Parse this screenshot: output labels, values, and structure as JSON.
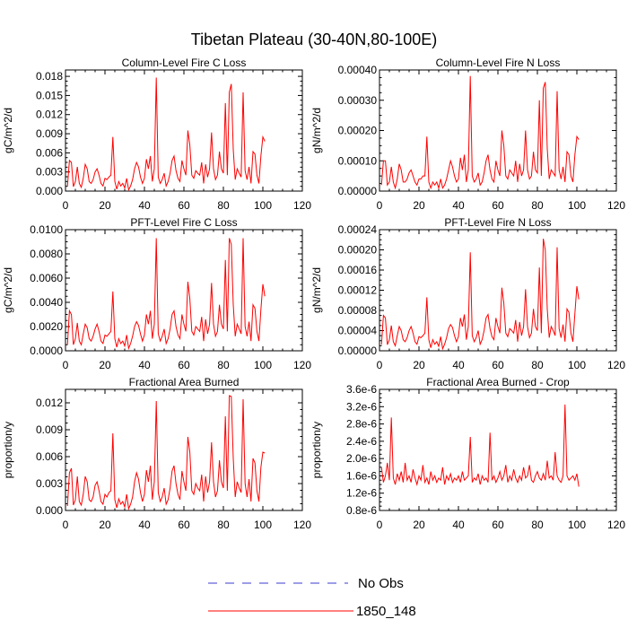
{
  "figure": {
    "title": "Tibetan Plateau (30-40N,80-100E)"
  },
  "legend": {
    "items": [
      {
        "label": "No Obs",
        "color": "#3b3bd0",
        "dash": "dashed"
      },
      {
        "label": "1850_148",
        "color": "#ff0000",
        "dash": "solid"
      }
    ]
  },
  "chart_data": [
    {
      "type": "line",
      "title": "Column-Level Fire C Loss",
      "ylabel": "gC/m^2/d",
      "xlim": [
        0,
        120
      ],
      "ylim": [
        0,
        0.019
      ],
      "xticks": [
        0,
        20,
        40,
        60,
        80,
        100,
        120
      ],
      "yticks": [
        0,
        0.003,
        0.006,
        0.009,
        0.012,
        0.015,
        0.018
      ],
      "yticklabels": [
        "0.000",
        "0.003",
        "0.006",
        "0.009",
        "0.012",
        "0.015",
        "0.018"
      ],
      "series": [
        {
          "name": "1850_148",
          "color": "#ff0000",
          "x_start": 1,
          "values": [
            0.0008,
            0.0048,
            0.0045,
            0.0007,
            0.0015,
            0.0038,
            0.0012,
            0.0006,
            0.002,
            0.0042,
            0.0035,
            0.0015,
            0.0012,
            0.0018,
            0.003,
            0.0035,
            0.0025,
            0.0012,
            0.0008,
            0.002,
            0.0018,
            0.0022,
            0.0025,
            0.0085,
            0.0015,
            0.0003,
            0.0015,
            0.0008,
            0.0012,
            0.0005,
            0.002,
            0.0002,
            0.0008,
            0.0018,
            0.0035,
            0.0045,
            0.0038,
            0.0022,
            0.0012,
            0.002,
            0.005,
            0.0035,
            0.0055,
            0.0015,
            0.0035,
            0.0178,
            0.0022,
            0.0012,
            0.0018,
            0.0028,
            0.0008,
            0.0015,
            0.0028,
            0.0048,
            0.0055,
            0.0032,
            0.002,
            0.0015,
            0.0048,
            0.0035,
            0.0025,
            0.0095,
            0.0072,
            0.0025,
            0.002,
            0.0032,
            0.0028,
            0.0025,
            0.0045,
            0.0012,
            0.0042,
            0.0022,
            0.0035,
            0.0092,
            0.0035,
            0.0018,
            0.0025,
            0.0062,
            0.0035,
            0.0028,
            0.0138,
            0.0025,
            0.0155,
            0.0168,
            0.0065,
            0.0018,
            0.0035,
            0.0028,
            0.0022,
            0.0155,
            0.0032,
            0.0018,
            0.0038,
            0.0012,
            0.0062,
            0.0058,
            0.0025,
            0.0012,
            0.0055,
            0.0085,
            0.0078
          ]
        }
      ]
    },
    {
      "type": "line",
      "title": "Column-Level Fire N Loss",
      "ylabel": "gN/m^2/d",
      "xlim": [
        0,
        120
      ],
      "ylim": [
        0,
        0.0004
      ],
      "xticks": [
        0,
        20,
        40,
        60,
        80,
        100,
        120
      ],
      "yticks": [
        0,
        0.0001,
        0.0002,
        0.0003,
        0.0004
      ],
      "yticklabels": [
        "0.00000",
        "0.00010",
        "0.00020",
        "0.00030",
        "0.00040"
      ],
      "series": [
        {
          "name": "1850_148",
          "color": "#ff0000",
          "x_start": 1,
          "values": [
            2e-05,
            0.0001,
            0.0001,
            2e-05,
            3e-05,
            8e-05,
            3e-05,
            1e-05,
            4e-05,
            9e-05,
            7e-05,
            3e-05,
            3e-05,
            4e-05,
            6e-05,
            7e-05,
            5e-05,
            3e-05,
            2e-05,
            4e-05,
            4e-05,
            5e-05,
            5e-05,
            0.00018,
            3e-05,
            1e-05,
            3e-05,
            2e-05,
            3e-05,
            1e-05,
            4e-05,
            1e-05,
            2e-05,
            4e-05,
            7e-05,
            0.0001,
            8e-05,
            5e-05,
            3e-05,
            4e-05,
            0.00011,
            7e-05,
            0.00012,
            3e-05,
            7e-05,
            0.00038,
            5e-05,
            3e-05,
            4e-05,
            6e-05,
            2e-05,
            3e-05,
            6e-05,
            0.0001,
            0.00012,
            7e-05,
            4e-05,
            3e-05,
            0.0001,
            7e-05,
            5e-05,
            0.0002,
            0.00015,
            5e-05,
            4e-05,
            7e-05,
            6e-05,
            5e-05,
            0.0001,
            3e-05,
            9e-05,
            5e-05,
            7e-05,
            0.0002,
            7e-05,
            4e-05,
            5e-05,
            0.00013,
            7e-05,
            6e-05,
            0.0003,
            5e-05,
            0.00034,
            0.00036,
            0.00014,
            4e-05,
            7e-05,
            6e-05,
            5e-05,
            0.00033,
            7e-05,
            4e-05,
            8e-05,
            3e-05,
            0.00013,
            0.00012,
            5e-05,
            3e-05,
            0.00012,
            0.00018,
            0.00017
          ]
        }
      ]
    },
    {
      "type": "line",
      "title": "PFT-Level Fire C Loss",
      "ylabel": "gC/m^2/d",
      "xlim": [
        0,
        120
      ],
      "ylim": [
        0,
        0.01
      ],
      "xticks": [
        0,
        20,
        40,
        60,
        80,
        100,
        120
      ],
      "yticks": [
        0,
        0.002,
        0.004,
        0.006,
        0.008,
        0.01
      ],
      "yticklabels": [
        "0.0000",
        "0.0020",
        "0.0040",
        "0.0060",
        "0.0080",
        "0.0100"
      ],
      "series": [
        {
          "name": "1850_148",
          "color": "#ff0000",
          "x_start": 1,
          "values": [
            0.0005,
            0.0033,
            0.003,
            0.0005,
            0.001,
            0.0023,
            0.0008,
            0.0005,
            0.0014,
            0.0022,
            0.0019,
            0.001,
            0.0008,
            0.0012,
            0.0018,
            0.0022,
            0.0016,
            0.0008,
            0.0006,
            0.0013,
            0.0012,
            0.0014,
            0.0016,
            0.0049,
            0.001,
            0.0003,
            0.001,
            0.0006,
            0.0008,
            0.0004,
            0.0013,
            0.0002,
            0.0006,
            0.0012,
            0.002,
            0.0024,
            0.0021,
            0.0014,
            0.0008,
            0.0013,
            0.003,
            0.0022,
            0.0033,
            0.001,
            0.0022,
            0.0093,
            0.0014,
            0.0008,
            0.0012,
            0.0018,
            0.0006,
            0.001,
            0.0018,
            0.003,
            0.0033,
            0.002,
            0.0013,
            0.001,
            0.003,
            0.0022,
            0.0016,
            0.0057,
            0.0043,
            0.0016,
            0.0013,
            0.002,
            0.0018,
            0.0016,
            0.0028,
            0.0008,
            0.0026,
            0.0014,
            0.0022,
            0.0056,
            0.0022,
            0.0012,
            0.0016,
            0.0038,
            0.0022,
            0.0018,
            0.0075,
            0.0016,
            0.0093,
            0.0088,
            0.0038,
            0.0012,
            0.0022,
            0.0018,
            0.0014,
            0.0093,
            0.002,
            0.0012,
            0.0024,
            0.0008,
            0.0038,
            0.0035,
            0.0016,
            0.0008,
            0.0034,
            0.0055,
            0.0045
          ]
        }
      ]
    },
    {
      "type": "line",
      "title": "PFT-Level Fire N Loss",
      "ylabel": "gN/m^2/d",
      "xlim": [
        0,
        120
      ],
      "ylim": [
        0,
        0.00024
      ],
      "xticks": [
        0,
        20,
        40,
        60,
        80,
        100,
        120
      ],
      "yticks": [
        0,
        4e-05,
        8e-05,
        0.00012,
        0.00016,
        0.0002,
        0.00024
      ],
      "yticklabels": [
        "0.00000",
        "0.00004",
        "0.00008",
        "0.00012",
        "0.00016",
        "0.00020",
        "0.00024"
      ],
      "series": [
        {
          "name": "1850_148",
          "color": "#ff0000",
          "x_start": 1,
          "values": [
            1.2e-05,
            7e-05,
            6.5e-05,
            1.2e-05,
            2.2e-05,
            5e-05,
            1.8e-05,
            1e-05,
            3e-05,
            4.8e-05,
            4e-05,
            2.2e-05,
            1.8e-05,
            2.6e-05,
            4e-05,
            4.8e-05,
            3.5e-05,
            1.8e-05,
            1.3e-05,
            2.8e-05,
            2.6e-05,
            3e-05,
            3.5e-05,
            0.000106,
            2.2e-05,
            6e-06,
            2.2e-05,
            1.3e-05,
            1.8e-05,
            9e-06,
            2.8e-05,
            4e-06,
            1.3e-05,
            2.6e-05,
            4.4e-05,
            5.2e-05,
            4.6e-05,
            3e-05,
            1.8e-05,
            2.8e-05,
            6.5e-05,
            4.8e-05,
            7.2e-05,
            2.2e-05,
            4.8e-05,
            0.000195,
            3e-05,
            1.8e-05,
            2.6e-05,
            4e-05,
            1.3e-05,
            2.2e-05,
            4e-05,
            6.5e-05,
            7.2e-05,
            4.4e-05,
            2.8e-05,
            2.2e-05,
            6.5e-05,
            4.8e-05,
            3.5e-05,
            0.000125,
            9.4e-05,
            3.5e-05,
            2.8e-05,
            4.4e-05,
            4e-05,
            3.5e-05,
            6.1e-05,
            1.8e-05,
            5.7e-05,
            3e-05,
            4.8e-05,
            0.000122,
            4.8e-05,
            2.6e-05,
            3.5e-05,
            8.3e-05,
            4.8e-05,
            4e-05,
            0.000165,
            3.5e-05,
            0.000222,
            0.0002,
            8.3e-05,
            2.6e-05,
            4.8e-05,
            4e-05,
            3e-05,
            0.000205,
            4.4e-05,
            2.6e-05,
            5.2e-05,
            1.8e-05,
            8.3e-05,
            7.6e-05,
            3.5e-05,
            1.8e-05,
            7.4e-05,
            0.000128,
            0.000102
          ]
        }
      ]
    },
    {
      "type": "line",
      "title": "Fractional Area Burned",
      "ylabel": "proportion/y",
      "xlim": [
        0,
        120
      ],
      "ylim": [
        0,
        0.0135
      ],
      "xticks": [
        0,
        20,
        40,
        60,
        80,
        100,
        120
      ],
      "yticks": [
        0,
        0.003,
        0.006,
        0.009,
        0.012
      ],
      "yticklabels": [
        "0.000",
        "0.003",
        "0.006",
        "0.009",
        "0.012"
      ],
      "series": [
        {
          "name": "1850_148",
          "color": "#ff0000",
          "x_start": 1,
          "values": [
            0.0005,
            0.0042,
            0.0047,
            0.0006,
            0.0012,
            0.0038,
            0.001,
            0.0006,
            0.0018,
            0.0038,
            0.0032,
            0.0012,
            0.001,
            0.0015,
            0.0028,
            0.0032,
            0.0022,
            0.001,
            0.0007,
            0.0018,
            0.0015,
            0.002,
            0.0022,
            0.0086,
            0.0012,
            0.0003,
            0.0013,
            0.0007,
            0.001,
            0.0004,
            0.0018,
            0.0002,
            0.0007,
            0.0015,
            0.0032,
            0.0042,
            0.0035,
            0.002,
            0.001,
            0.0018,
            0.0045,
            0.0032,
            0.005,
            0.0012,
            0.0032,
            0.0122,
            0.002,
            0.001,
            0.0015,
            0.0025,
            0.0007,
            0.0012,
            0.0025,
            0.0044,
            0.005,
            0.003,
            0.0018,
            0.0012,
            0.0044,
            0.0032,
            0.0022,
            0.0082,
            0.0065,
            0.0022,
            0.0018,
            0.003,
            0.0025,
            0.0022,
            0.004,
            0.001,
            0.0038,
            0.002,
            0.0032,
            0.0076,
            0.0032,
            0.0015,
            0.0022,
            0.0056,
            0.0032,
            0.0025,
            0.0105,
            0.0022,
            0.0128,
            0.0127,
            0.0058,
            0.0015,
            0.0032,
            0.0025,
            0.002,
            0.0124,
            0.003,
            0.0015,
            0.0035,
            0.001,
            0.0058,
            0.0053,
            0.0022,
            0.001,
            0.0048,
            0.0065,
            0.0064
          ]
        }
      ]
    },
    {
      "type": "line",
      "title": "Fractional Area Burned - Crop",
      "ylabel": "proportion/y",
      "xlim": [
        0,
        120
      ],
      "ylim": [
        8e-07,
        3.6e-06
      ],
      "xticks": [
        0,
        20,
        40,
        60,
        80,
        100,
        120
      ],
      "yticks": [
        8e-07,
        1.2e-06,
        1.6e-06,
        2e-06,
        2.4e-06,
        2.8e-06,
        3.2e-06,
        3.6e-06
      ],
      "yticklabels": [
        "0.8e-6",
        "1.2e-6",
        "1.6e-6",
        "2.0e-6",
        "2.4e-6",
        "2.8e-6",
        "3.2e-6",
        "3.6e-6"
      ],
      "series": [
        {
          "name": "1850_148",
          "color": "#ff0000",
          "x_start": 1,
          "values": [
            1.8e-06,
            1.45e-06,
            1.6e-06,
            1.9e-06,
            1.5e-06,
            2.95e-06,
            1.55e-06,
            1.4e-06,
            1.65e-06,
            1.5e-06,
            1.7e-06,
            1.45e-06,
            1.9e-06,
            1.5e-06,
            1.6e-06,
            1.45e-06,
            1.75e-06,
            1.55e-06,
            1.4e-06,
            1.6e-06,
            1.5e-06,
            1.85e-06,
            1.45e-06,
            1.55e-06,
            1.4e-06,
            1.7e-06,
            1.5e-06,
            1.6e-06,
            1.45e-06,
            1.55e-06,
            1.5e-06,
            1.8e-06,
            1.4e-06,
            1.6e-06,
            1.5e-06,
            1.65e-06,
            1.45e-06,
            1.55e-06,
            1.5e-06,
            1.6e-06,
            1.45e-06,
            1.7e-06,
            1.5e-06,
            1.55e-06,
            1.6e-06,
            2.5e-06,
            1.45e-06,
            1.55e-06,
            1.5e-06,
            1.65e-06,
            1.4e-06,
            1.6e-06,
            1.5e-06,
            1.55e-06,
            1.45e-06,
            2.6e-06,
            1.5e-06,
            1.6e-06,
            1.45e-06,
            1.55e-06,
            1.7e-06,
            1.5e-06,
            1.6e-06,
            1.85e-06,
            1.45e-06,
            1.6e-06,
            1.5e-06,
            1.75e-06,
            1.55e-06,
            1.45e-06,
            1.6e-06,
            1.5e-06,
            1.8e-06,
            1.55e-06,
            1.6e-06,
            1.85e-06,
            1.5e-06,
            1.45e-06,
            1.6e-06,
            1.7e-06,
            1.55e-06,
            1.5e-06,
            1.65e-06,
            1.5e-06,
            1.95e-06,
            1.55e-06,
            1.6e-06,
            1.5e-06,
            2.15e-06,
            1.6e-06,
            1.5e-06,
            1.45e-06,
            1.6e-06,
            3.25e-06,
            1.6e-06,
            1.5e-06,
            1.55e-06,
            1.6e-06,
            1.5e-06,
            1.65e-06,
            1.35e-06
          ]
        }
      ]
    }
  ]
}
